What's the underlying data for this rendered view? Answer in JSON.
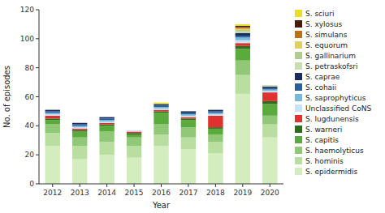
{
  "chart_data": {
    "type": "bar",
    "stacked": true,
    "xlabel": "Year",
    "ylabel": "No. of episodes",
    "categories": [
      "2012",
      "2013",
      "2014",
      "2015",
      "2016",
      "2017",
      "2018",
      "2019",
      "2020"
    ],
    "series": [
      {
        "name": "S. epidermidis",
        "color": "#d4edbe",
        "values": [
          26,
          17,
          20,
          18,
          26,
          24,
          21,
          62,
          32
        ]
      },
      {
        "name": "S. hominis",
        "color": "#b8dfa0",
        "values": [
          9,
          9,
          9,
          8,
          8,
          8,
          8,
          13,
          9
        ]
      },
      {
        "name": "S. haemolyticus",
        "color": "#90c878",
        "values": [
          6,
          6,
          7,
          6,
          7,
          7,
          5,
          10,
          6
        ]
      },
      {
        "name": "S. capitis",
        "color": "#5aaa3c",
        "values": [
          3,
          4,
          4,
          2,
          8,
          5,
          4,
          8,
          8
        ]
      },
      {
        "name": "S. warneri",
        "color": "#2d6e1e",
        "values": [
          1,
          1,
          1,
          1,
          1,
          1,
          1,
          2,
          2
        ]
      },
      {
        "name": "S. lugdunensis",
        "color": "#e03030",
        "values": [
          2,
          1,
          1,
          1,
          1,
          1,
          8,
          2,
          6
        ]
      },
      {
        "name": "Unclassified CoNS",
        "color": "#c8e4f4",
        "values": [
          1,
          1,
          1,
          1,
          1,
          1,
          1,
          2,
          1
        ]
      },
      {
        "name": "S. saprophyticus",
        "color": "#78b8d8",
        "values": [
          1,
          1,
          1,
          0,
          1,
          1,
          1,
          2,
          1
        ]
      },
      {
        "name": "S. cohaii",
        "color": "#2a5ea0",
        "values": [
          1,
          1,
          1,
          0,
          1,
          1,
          1,
          1,
          1
        ]
      },
      {
        "name": "S. caprae",
        "color": "#162d5e",
        "values": [
          1,
          1,
          1,
          0,
          1,
          1,
          1,
          2,
          1
        ]
      },
      {
        "name": "S. petraskofsri",
        "color": "#c8ddb0",
        "values": [
          0,
          0,
          0,
          0,
          0,
          0,
          0,
          1,
          1
        ]
      },
      {
        "name": "S. gallinarium",
        "color": "#b0cc90",
        "values": [
          0,
          0,
          0,
          0,
          0,
          0,
          0,
          1,
          0
        ]
      },
      {
        "name": "S. equorum",
        "color": "#e0d060",
        "values": [
          0,
          0,
          0,
          0,
          0,
          0,
          0,
          1,
          0
        ]
      },
      {
        "name": "S. simulans",
        "color": "#c07010",
        "values": [
          0,
          0,
          0,
          0,
          0,
          0,
          0,
          1,
          0
        ]
      },
      {
        "name": "S. xylosus",
        "color": "#4a1a08",
        "values": [
          0,
          0,
          0,
          0,
          0,
          0,
          0,
          1,
          0
        ]
      },
      {
        "name": "S. sciuri",
        "color": "#e8e020",
        "values": [
          0,
          0,
          0,
          0,
          1,
          0,
          0,
          1,
          0
        ]
      }
    ],
    "ylim": [
      0,
      120
    ],
    "yticks": [
      0,
      20,
      40,
      60,
      80,
      100,
      120
    ],
    "grid": false,
    "legend": "right"
  }
}
